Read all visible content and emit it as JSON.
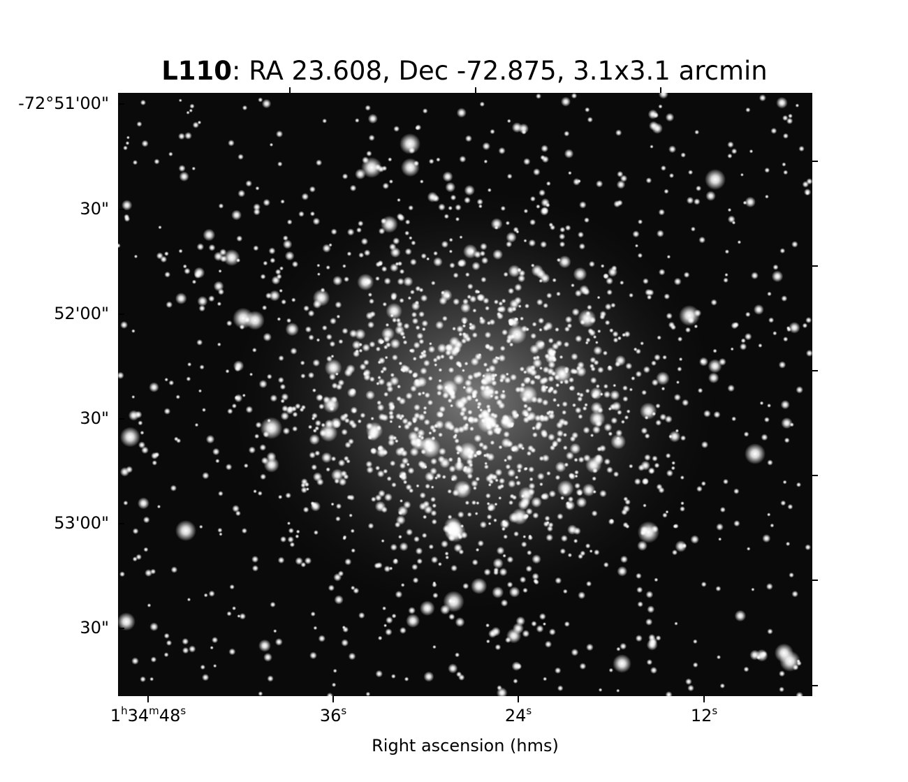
{
  "title": {
    "object_name": "L110",
    "details": ": RA 23.608, Dec -72.875, 3.1x3.1 arcmin"
  },
  "axes": {
    "xlabel": "Right ascension (hms)",
    "x_ticks": [
      {
        "h": "1",
        "m": "34",
        "s": "48",
        "label": "1h34m48s"
      },
      {
        "s": "36",
        "label": "36s"
      },
      {
        "s": "24",
        "label": "24s"
      },
      {
        "s": "12",
        "label": "12s"
      }
    ],
    "y_ticks": [
      "-72°51'00\"",
      "30\"",
      "52'00\"",
      "30\"",
      "53'00\"",
      "30\""
    ]
  },
  "image": {
    "description": "star-cluster-field",
    "background_color": "#0a0a0a",
    "star_color": "#ffffff"
  }
}
